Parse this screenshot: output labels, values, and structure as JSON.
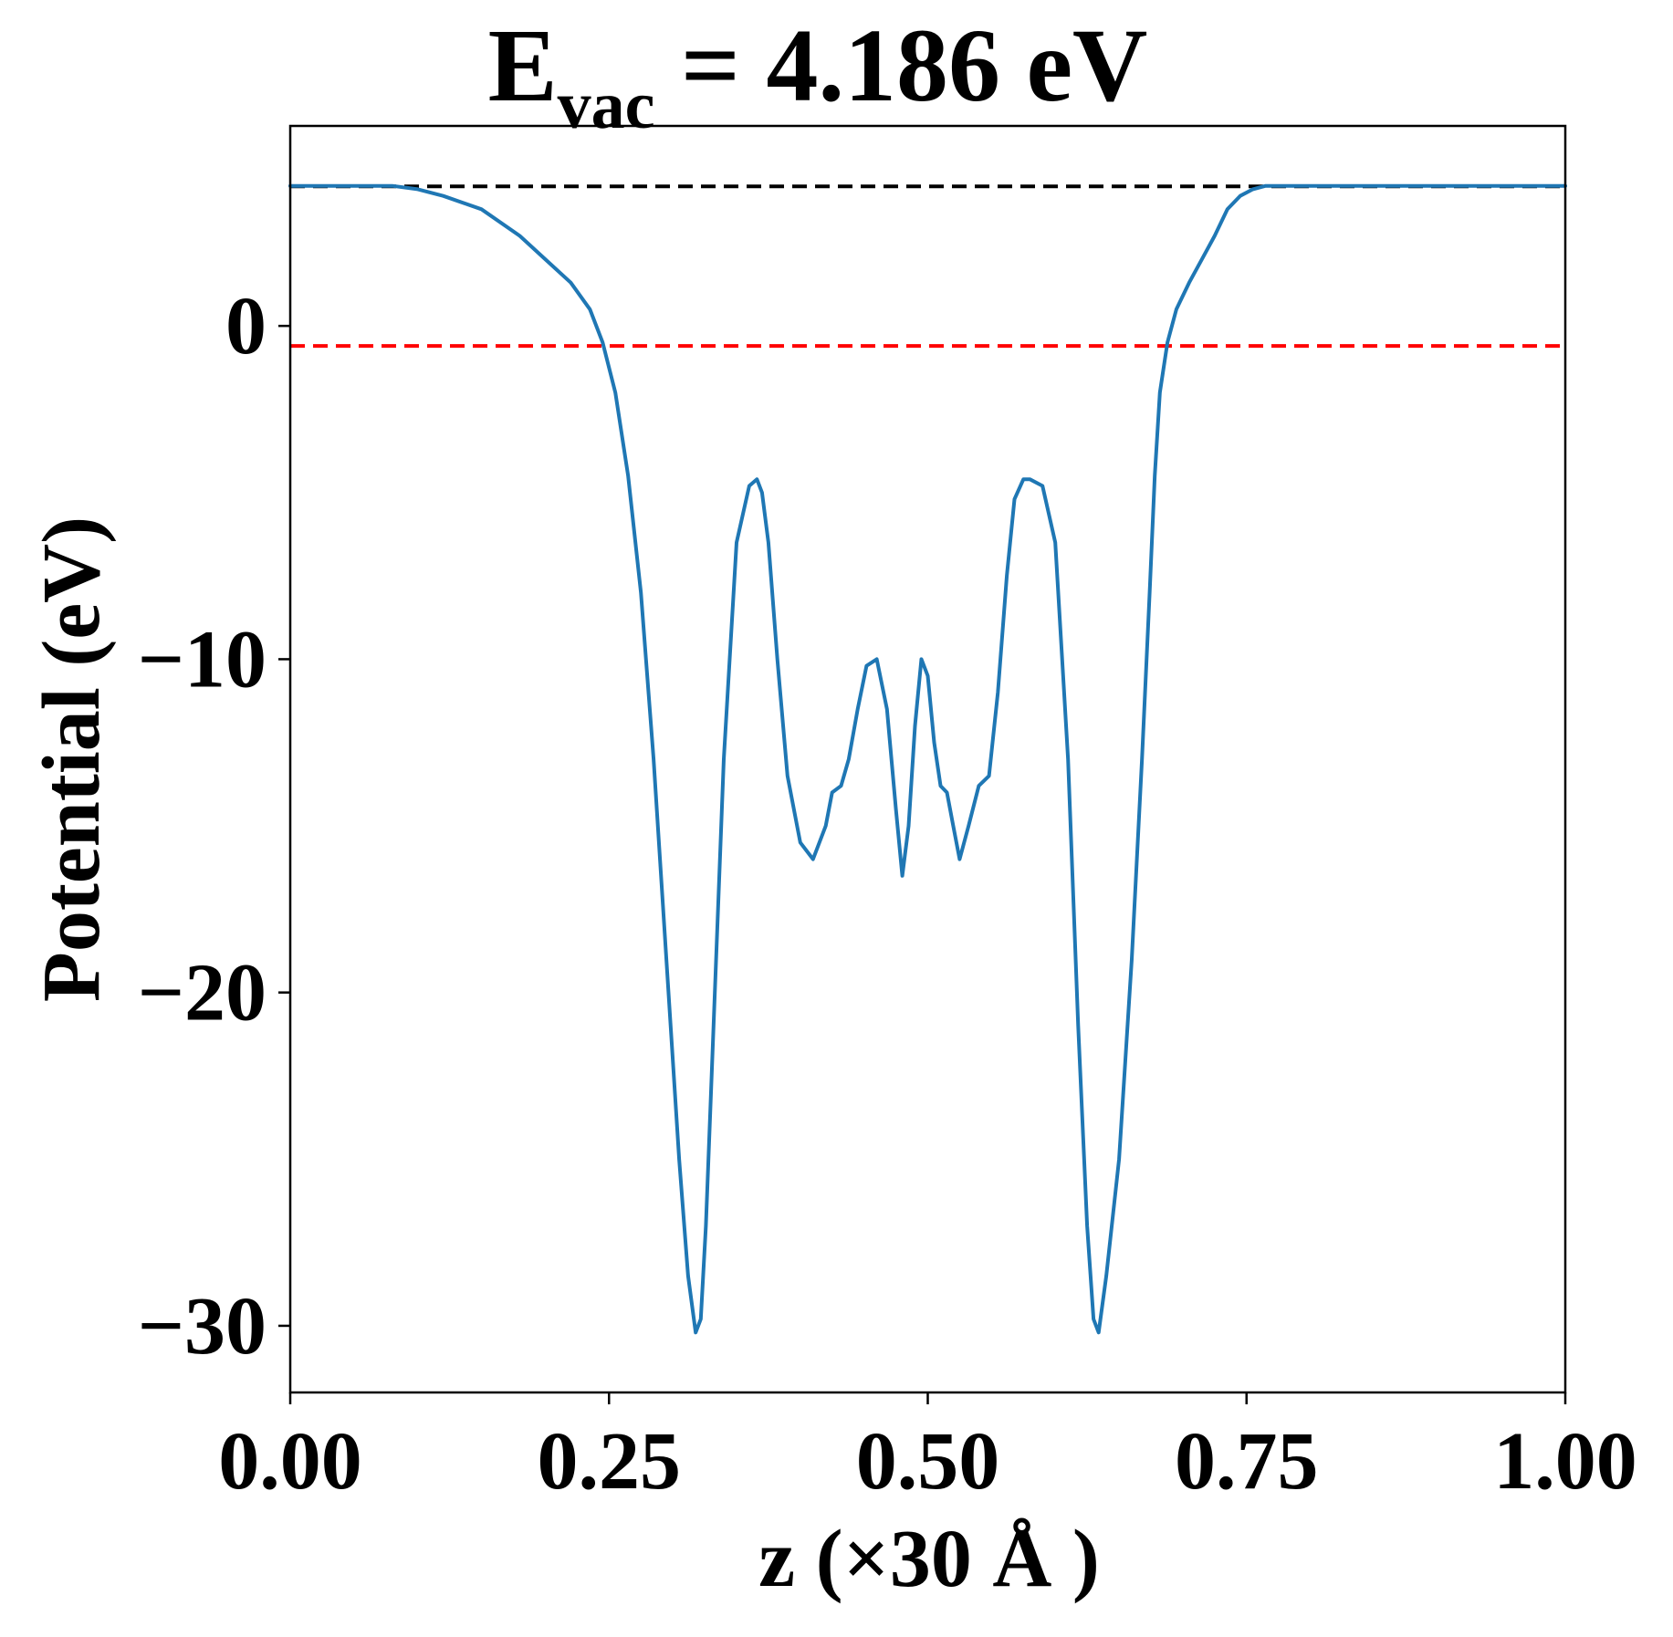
{
  "chart_data": {
    "type": "line",
    "title": {
      "main": "E",
      "subscript": "vac",
      "rest": " = 4.186 eV"
    },
    "xlabel": "z (×30 Å )",
    "ylabel": "Potential (eV)",
    "xlim": [
      0,
      1
    ],
    "ylim": [
      -32,
      6
    ],
    "xticks": [
      0,
      0.25,
      0.5,
      0.75,
      1.0
    ],
    "xtick_labels": [
      "0.00",
      "0.25",
      "0.50",
      "0.75",
      "1.00"
    ],
    "yticks": [
      0,
      -10,
      -20,
      -30
    ],
    "ytick_labels": [
      "0",
      "−10",
      "−20",
      "−30"
    ],
    "grid": false,
    "legend": null,
    "reference_lines": [
      {
        "y": 4.186,
        "style": "dashed",
        "color": "#000000"
      },
      {
        "y": -0.6,
        "style": "dashed",
        "color": "#ff0000"
      }
    ],
    "series": [
      {
        "color": "#1f77b4",
        "x": [
          0.0,
          0.02,
          0.05,
          0.08,
          0.1,
          0.12,
          0.15,
          0.18,
          0.2,
          0.22,
          0.235,
          0.245,
          0.255,
          0.265,
          0.275,
          0.285,
          0.295,
          0.305,
          0.312,
          0.318,
          0.322,
          0.326,
          0.332,
          0.34,
          0.35,
          0.36,
          0.366,
          0.37,
          0.375,
          0.382,
          0.39,
          0.4,
          0.41,
          0.42,
          0.425,
          0.432,
          0.438,
          0.445,
          0.452,
          0.46,
          0.468,
          0.475,
          0.48,
          0.485,
          0.49,
          0.495,
          0.5,
          0.505,
          0.51,
          0.515,
          0.52,
          0.525,
          0.532,
          0.54,
          0.548,
          0.555,
          0.562,
          0.568,
          0.575,
          0.58,
          0.59,
          0.6,
          0.61,
          0.618,
          0.625,
          0.63,
          0.634,
          0.64,
          0.65,
          0.66,
          0.668,
          0.674,
          0.678,
          0.682,
          0.688,
          0.695,
          0.705,
          0.715,
          0.725,
          0.735,
          0.745,
          0.755,
          0.765,
          0.78,
          0.8,
          0.82,
          0.85,
          0.88,
          0.9,
          0.92,
          0.95,
          0.98,
          1.0
        ],
        "y": [
          4.2,
          4.2,
          4.2,
          4.2,
          4.1,
          3.9,
          3.5,
          2.7,
          2.0,
          1.3,
          0.5,
          -0.5,
          -2.0,
          -4.5,
          -8.0,
          -13.0,
          -19.0,
          -25.0,
          -28.5,
          -30.2,
          -29.8,
          -27.0,
          -21.0,
          -13.0,
          -6.5,
          -4.8,
          -4.6,
          -5.0,
          -6.5,
          -10.0,
          -13.5,
          -15.5,
          -16.0,
          -15.0,
          -14.0,
          -13.8,
          -13.0,
          -11.5,
          -10.2,
          -10.0,
          -11.5,
          -14.5,
          -16.5,
          -15.0,
          -12.0,
          -10.0,
          -10.5,
          -12.5,
          -13.8,
          -14.0,
          -15.0,
          -16.0,
          -15.0,
          -13.8,
          -13.5,
          -11.0,
          -7.5,
          -5.2,
          -4.6,
          -4.6,
          -4.8,
          -6.5,
          -13.0,
          -21.0,
          -27.0,
          -29.8,
          -30.2,
          -28.5,
          -25.0,
          -19.0,
          -13.0,
          -8.0,
          -4.5,
          -2.0,
          -0.5,
          0.5,
          1.3,
          2.0,
          2.7,
          3.5,
          3.9,
          4.1,
          4.2,
          4.2,
          4.2,
          4.2,
          4.2,
          4.2,
          4.2,
          4.2,
          4.2,
          4.2,
          4.2
        ]
      }
    ]
  }
}
